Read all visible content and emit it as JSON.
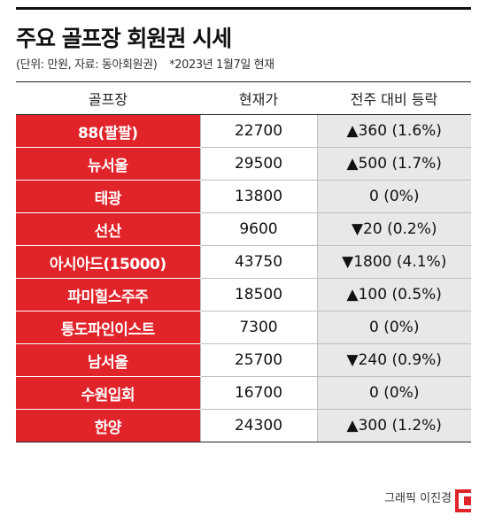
{
  "title": "주요 골프장 회원권 시세",
  "subtitle": {
    "unit_source": "(단위: 만원, 자료: 동아회원권)",
    "note": "*2023년 1월7일 현재"
  },
  "table": {
    "headers": [
      "골프장",
      "현재가",
      "전주 대비 등락"
    ],
    "rows": [
      {
        "name": "88(팔팔)",
        "price": "22700",
        "change": "▲360 (1.6%)"
      },
      {
        "name": "뉴서울",
        "price": "29500",
        "change": "▲500 (1.7%)"
      },
      {
        "name": "태광",
        "price": "13800",
        "change": "0 (0%)"
      },
      {
        "name": "선산",
        "price": "9600",
        "change": "▼20 (0.2%)"
      },
      {
        "name": "아시아드(15000)",
        "price": "43750",
        "change": "▼1800 (4.1%)"
      },
      {
        "name": "파미힐스주주",
        "price": "18500",
        "change": "▲100 (0.5%)"
      },
      {
        "name": "통도파인이스트",
        "price": "7300",
        "change": "0 (0%)"
      },
      {
        "name": "남서울",
        "price": "25700",
        "change": "▼240 (0.9%)"
      },
      {
        "name": "수원입회",
        "price": "16700",
        "change": "0 (0%)"
      },
      {
        "name": "한양",
        "price": "24300",
        "change": "▲300 (1.2%)"
      }
    ]
  },
  "credit": "그래픽 이진경",
  "colors": {
    "accent": "#e1232a",
    "change_bg": "#e8e8e8"
  },
  "logo_icon": "red-bracket-logo"
}
